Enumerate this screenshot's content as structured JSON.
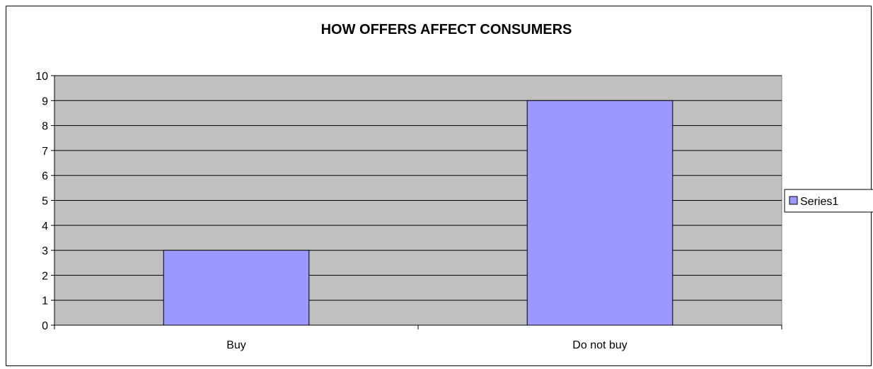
{
  "chart_data": {
    "type": "bar",
    "title": "HOW OFFERS AFFECT CONSUMERS",
    "xlabel": "",
    "ylabel": "",
    "categories": [
      "Buy",
      "Do not buy"
    ],
    "series": [
      {
        "name": "Series1",
        "values": [
          3,
          9
        ],
        "color": "#9999ff"
      }
    ],
    "ylim": [
      0,
      10
    ],
    "yticks": [
      "0",
      "1",
      "2",
      "3",
      "4",
      "5",
      "6",
      "7",
      "8",
      "9",
      "10"
    ],
    "grid": true,
    "legend": "right",
    "plot_background": "#c0c0c0"
  }
}
